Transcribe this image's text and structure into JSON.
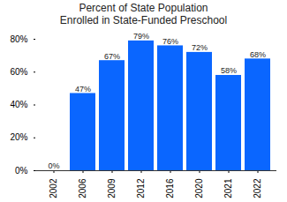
{
  "chart_data": {
    "type": "bar",
    "title": "Percent of State Population\nEnrolled in State-Funded Preschool",
    "categories": [
      "2002",
      "2006",
      "2009",
      "2012",
      "2016",
      "2020",
      "2021",
      "2022"
    ],
    "values": [
      0,
      47,
      67,
      79,
      76,
      72,
      58,
      68
    ],
    "value_labels": [
      "0%",
      "47%",
      "67%",
      "79%",
      "76%",
      "72%",
      "58%",
      "68%"
    ],
    "color": "#0a66ff",
    "ylim": [
      0,
      80
    ],
    "yticks": [
      {
        "value": 0,
        "label": "0%"
      },
      {
        "value": 20,
        "label": "20%"
      },
      {
        "value": 40,
        "label": "40%"
      },
      {
        "value": 60,
        "label": "60%"
      },
      {
        "value": 80,
        "label": "80%"
      }
    ],
    "grid": false,
    "data_labels": true
  }
}
